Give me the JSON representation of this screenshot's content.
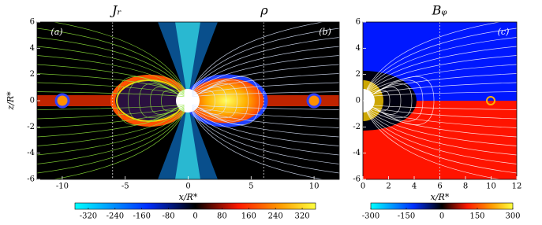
{
  "chart_data": [
    {
      "type": "heatmap",
      "titles": [
        "Jᵣ",
        "ρ"
      ],
      "panel_labels": [
        "(a)",
        "(b)"
      ],
      "xlabel": "x/R*",
      "ylabel": "z/R*",
      "xlim": [
        -12,
        12
      ],
      "ylim": [
        -6,
        6
      ],
      "xticks": [
        -10,
        -5,
        0,
        5,
        10
      ],
      "yticks": [
        -6,
        -4,
        -2,
        0,
        2,
        4,
        6
      ],
      "vlines": [
        -6,
        6
      ],
      "colorbar": {
        "clim": [
          -360,
          360
        ],
        "ticks": [
          -320,
          -240,
          -160,
          -80,
          0,
          80,
          160,
          240,
          320
        ]
      }
    },
    {
      "type": "heatmap",
      "titles": [
        "Bᵩ"
      ],
      "panel_labels": [
        "(c)"
      ],
      "xlabel": "x/R*",
      "xlim": [
        0,
        12
      ],
      "ylim": [
        -6,
        6
      ],
      "xticks": [
        0,
        2,
        4,
        6,
        8,
        10,
        12
      ],
      "yticks": [
        -6,
        -4,
        -2,
        0,
        2,
        4,
        6
      ],
      "vlines": [
        6
      ],
      "colorbar": {
        "clim": [
          -300,
          300
        ],
        "ticks": [
          -300,
          -150,
          0,
          150,
          300
        ]
      }
    }
  ]
}
